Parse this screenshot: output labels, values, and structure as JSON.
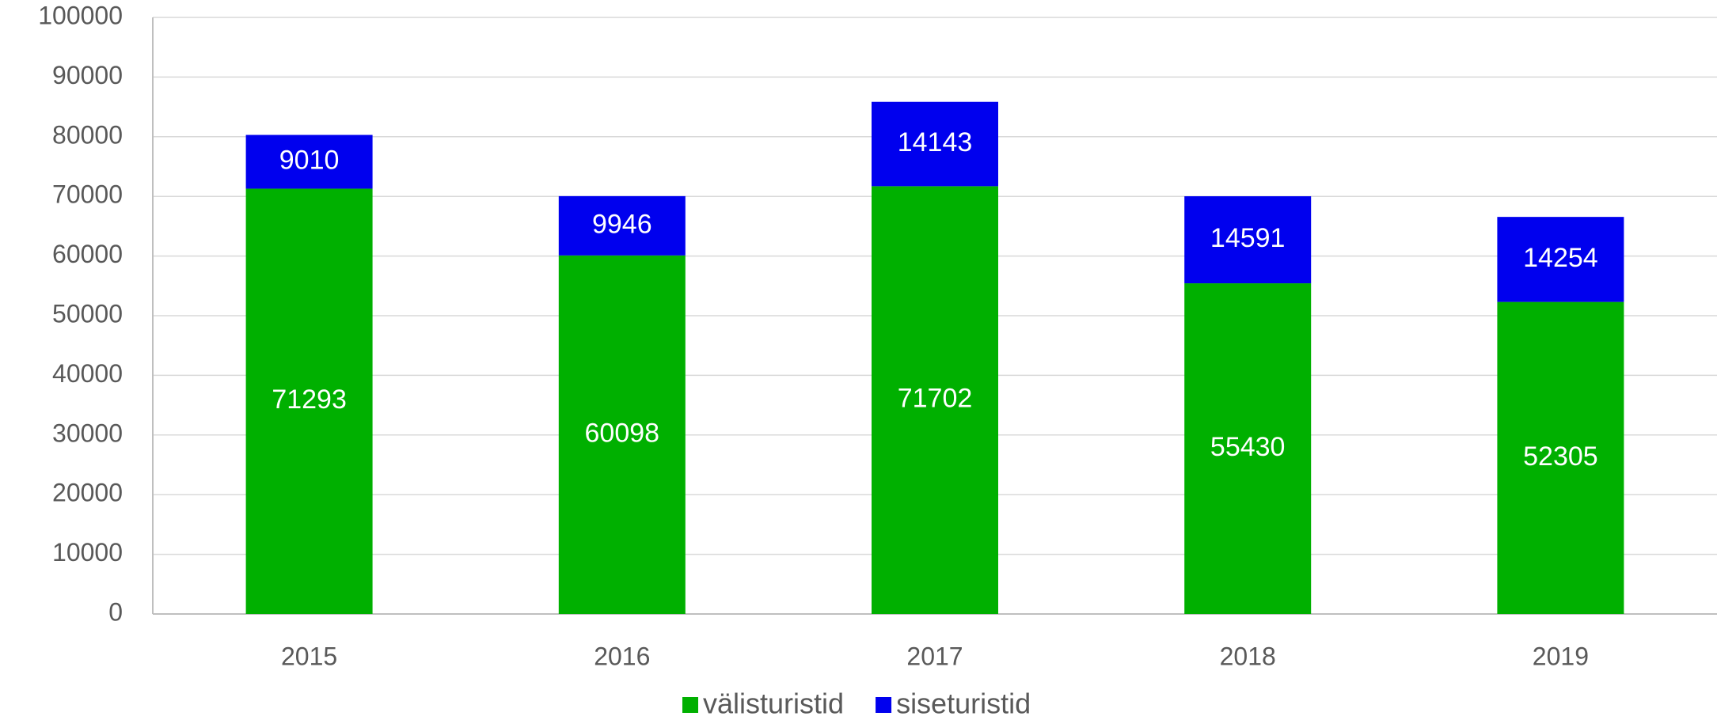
{
  "chart_data": {
    "type": "stacked_bar",
    "categories": [
      "2015",
      "2016",
      "2017",
      "2018",
      "2019"
    ],
    "series": [
      {
        "name": "välisturistid",
        "color": "#00b000",
        "values": [
          71293,
          60098,
          71702,
          55430,
          52305
        ]
      },
      {
        "name": "siseturistid",
        "color": "#0000ee",
        "values": [
          9010,
          9946,
          14143,
          14591,
          14254
        ]
      }
    ],
    "ylim": [
      0,
      100000
    ],
    "yticks": [
      0,
      10000,
      20000,
      30000,
      40000,
      50000,
      60000,
      70000,
      80000,
      90000,
      100000
    ],
    "grid": true,
    "legend": "bottom"
  }
}
